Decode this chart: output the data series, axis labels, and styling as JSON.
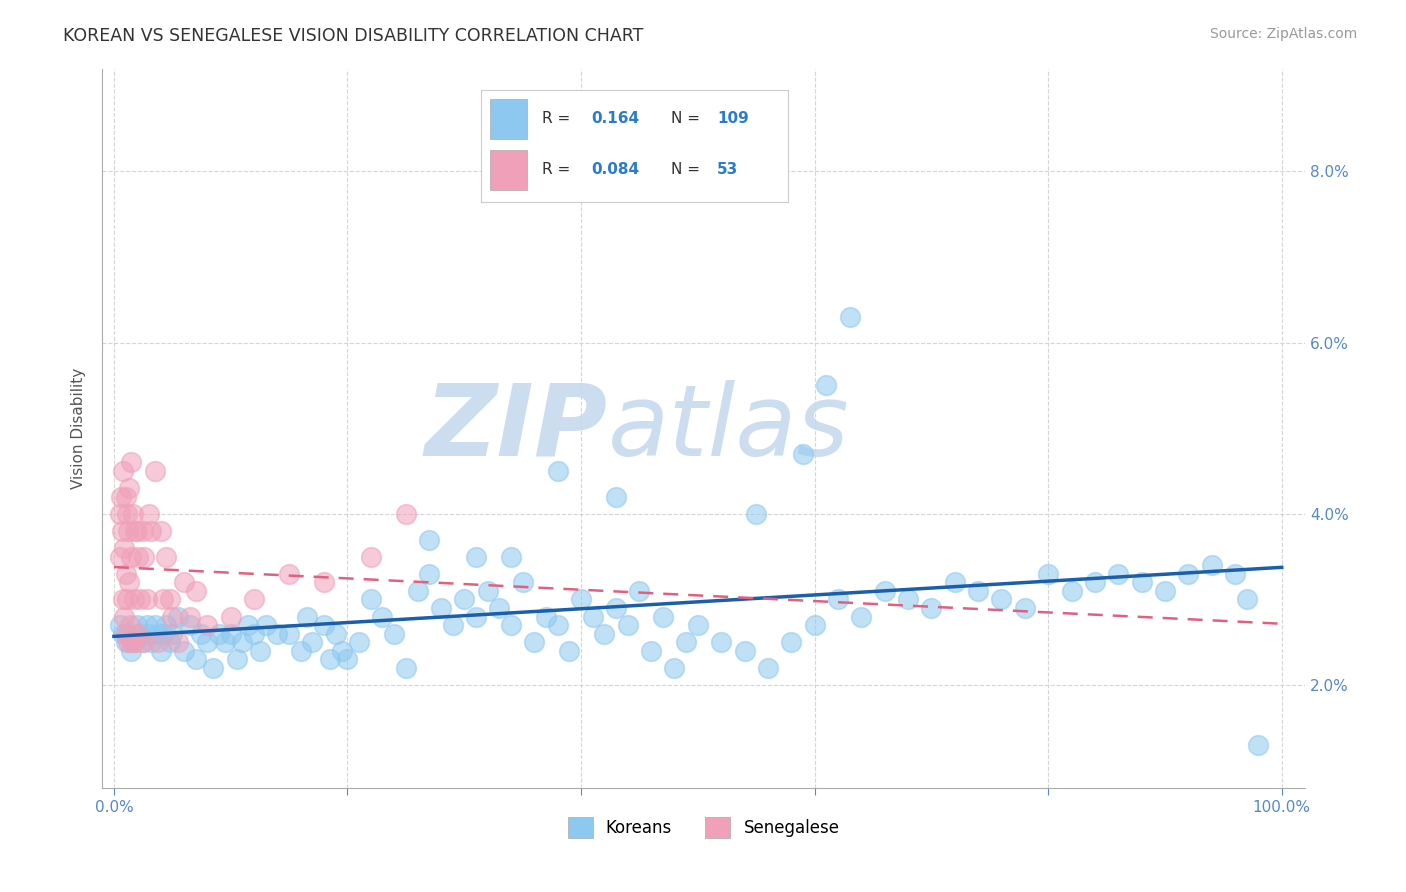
{
  "title": "KOREAN VS SENEGALESE VISION DISABILITY CORRELATION CHART",
  "source": "Source: ZipAtlas.com",
  "ylabel": "Vision Disability",
  "xlim": [
    -0.01,
    1.02
  ],
  "ylim": [
    0.008,
    0.092
  ],
  "yticks": [
    0.02,
    0.04,
    0.06,
    0.08
  ],
  "xticks": [
    0.0,
    0.2,
    0.4,
    0.6,
    0.8,
    1.0
  ],
  "legend_label1": "Koreans",
  "legend_label2": "Senegalese",
  "korean_color": "#8DC8F0",
  "senegalese_color": "#F0A0B8",
  "trend_korean_color": "#1A5FA8",
  "trend_senegalese_color": "#E06080",
  "grid_color": "#CCCCCC",
  "background_color": "#FFFFFF",
  "tick_color": "#5588CC",
  "watermark_color": "#C5D8EE",
  "korean_x": [
    0.005,
    0.008,
    0.01,
    0.012,
    0.015,
    0.018,
    0.02,
    0.022,
    0.025,
    0.028,
    0.03,
    0.032,
    0.035,
    0.038,
    0.04,
    0.042,
    0.045,
    0.048,
    0.05,
    0.055,
    0.06,
    0.065,
    0.07,
    0.075,
    0.08,
    0.085,
    0.09,
    0.095,
    0.1,
    0.105,
    0.11,
    0.115,
    0.12,
    0.125,
    0.13,
    0.14,
    0.15,
    0.16,
    0.165,
    0.17,
    0.18,
    0.185,
    0.19,
    0.195,
    0.2,
    0.21,
    0.22,
    0.23,
    0.24,
    0.25,
    0.26,
    0.27,
    0.28,
    0.29,
    0.3,
    0.31,
    0.32,
    0.33,
    0.34,
    0.35,
    0.36,
    0.37,
    0.38,
    0.39,
    0.4,
    0.41,
    0.42,
    0.43,
    0.44,
    0.45,
    0.46,
    0.47,
    0.48,
    0.49,
    0.5,
    0.52,
    0.54,
    0.56,
    0.58,
    0.6,
    0.62,
    0.64,
    0.66,
    0.68,
    0.7,
    0.72,
    0.74,
    0.76,
    0.78,
    0.8,
    0.82,
    0.84,
    0.86,
    0.88,
    0.9,
    0.92,
    0.94,
    0.96,
    0.97,
    0.38,
    0.43,
    0.55,
    0.59,
    0.61,
    0.63,
    0.34,
    0.27,
    0.31,
    0.98
  ],
  "korean_y": [
    0.027,
    0.026,
    0.025,
    0.026,
    0.024,
    0.025,
    0.027,
    0.026,
    0.025,
    0.027,
    0.026,
    0.025,
    0.027,
    0.026,
    0.024,
    0.026,
    0.027,
    0.025,
    0.026,
    0.028,
    0.024,
    0.027,
    0.023,
    0.026,
    0.025,
    0.022,
    0.026,
    0.025,
    0.026,
    0.023,
    0.025,
    0.027,
    0.026,
    0.024,
    0.027,
    0.026,
    0.026,
    0.024,
    0.028,
    0.025,
    0.027,
    0.023,
    0.026,
    0.024,
    0.023,
    0.025,
    0.03,
    0.028,
    0.026,
    0.022,
    0.031,
    0.033,
    0.029,
    0.027,
    0.03,
    0.028,
    0.031,
    0.029,
    0.027,
    0.032,
    0.025,
    0.028,
    0.027,
    0.024,
    0.03,
    0.028,
    0.026,
    0.029,
    0.027,
    0.031,
    0.024,
    0.028,
    0.022,
    0.025,
    0.027,
    0.025,
    0.024,
    0.022,
    0.025,
    0.027,
    0.03,
    0.028,
    0.031,
    0.03,
    0.029,
    0.032,
    0.031,
    0.03,
    0.029,
    0.033,
    0.031,
    0.032,
    0.033,
    0.032,
    0.031,
    0.033,
    0.034,
    0.033,
    0.03,
    0.045,
    0.042,
    0.04,
    0.047,
    0.055,
    0.063,
    0.035,
    0.037,
    0.035,
    0.013
  ],
  "senegalese_x": [
    0.005,
    0.005,
    0.006,
    0.007,
    0.008,
    0.008,
    0.009,
    0.009,
    0.01,
    0.01,
    0.01,
    0.011,
    0.011,
    0.012,
    0.012,
    0.013,
    0.013,
    0.014,
    0.015,
    0.015,
    0.015,
    0.016,
    0.017,
    0.018,
    0.018,
    0.02,
    0.02,
    0.021,
    0.022,
    0.025,
    0.025,
    0.026,
    0.028,
    0.03,
    0.032,
    0.035,
    0.038,
    0.04,
    0.042,
    0.045,
    0.048,
    0.05,
    0.055,
    0.06,
    0.065,
    0.07,
    0.08,
    0.1,
    0.12,
    0.15,
    0.18,
    0.22,
    0.25
  ],
  "senegalese_y": [
    0.04,
    0.035,
    0.042,
    0.038,
    0.045,
    0.03,
    0.036,
    0.028,
    0.042,
    0.033,
    0.026,
    0.04,
    0.03,
    0.025,
    0.038,
    0.043,
    0.032,
    0.027,
    0.046,
    0.035,
    0.025,
    0.04,
    0.03,
    0.038,
    0.025,
    0.038,
    0.026,
    0.035,
    0.03,
    0.038,
    0.025,
    0.035,
    0.03,
    0.04,
    0.038,
    0.045,
    0.025,
    0.038,
    0.03,
    0.035,
    0.03,
    0.028,
    0.025,
    0.032,
    0.028,
    0.031,
    0.027,
    0.028,
    0.03,
    0.033,
    0.032,
    0.035,
    0.04
  ]
}
